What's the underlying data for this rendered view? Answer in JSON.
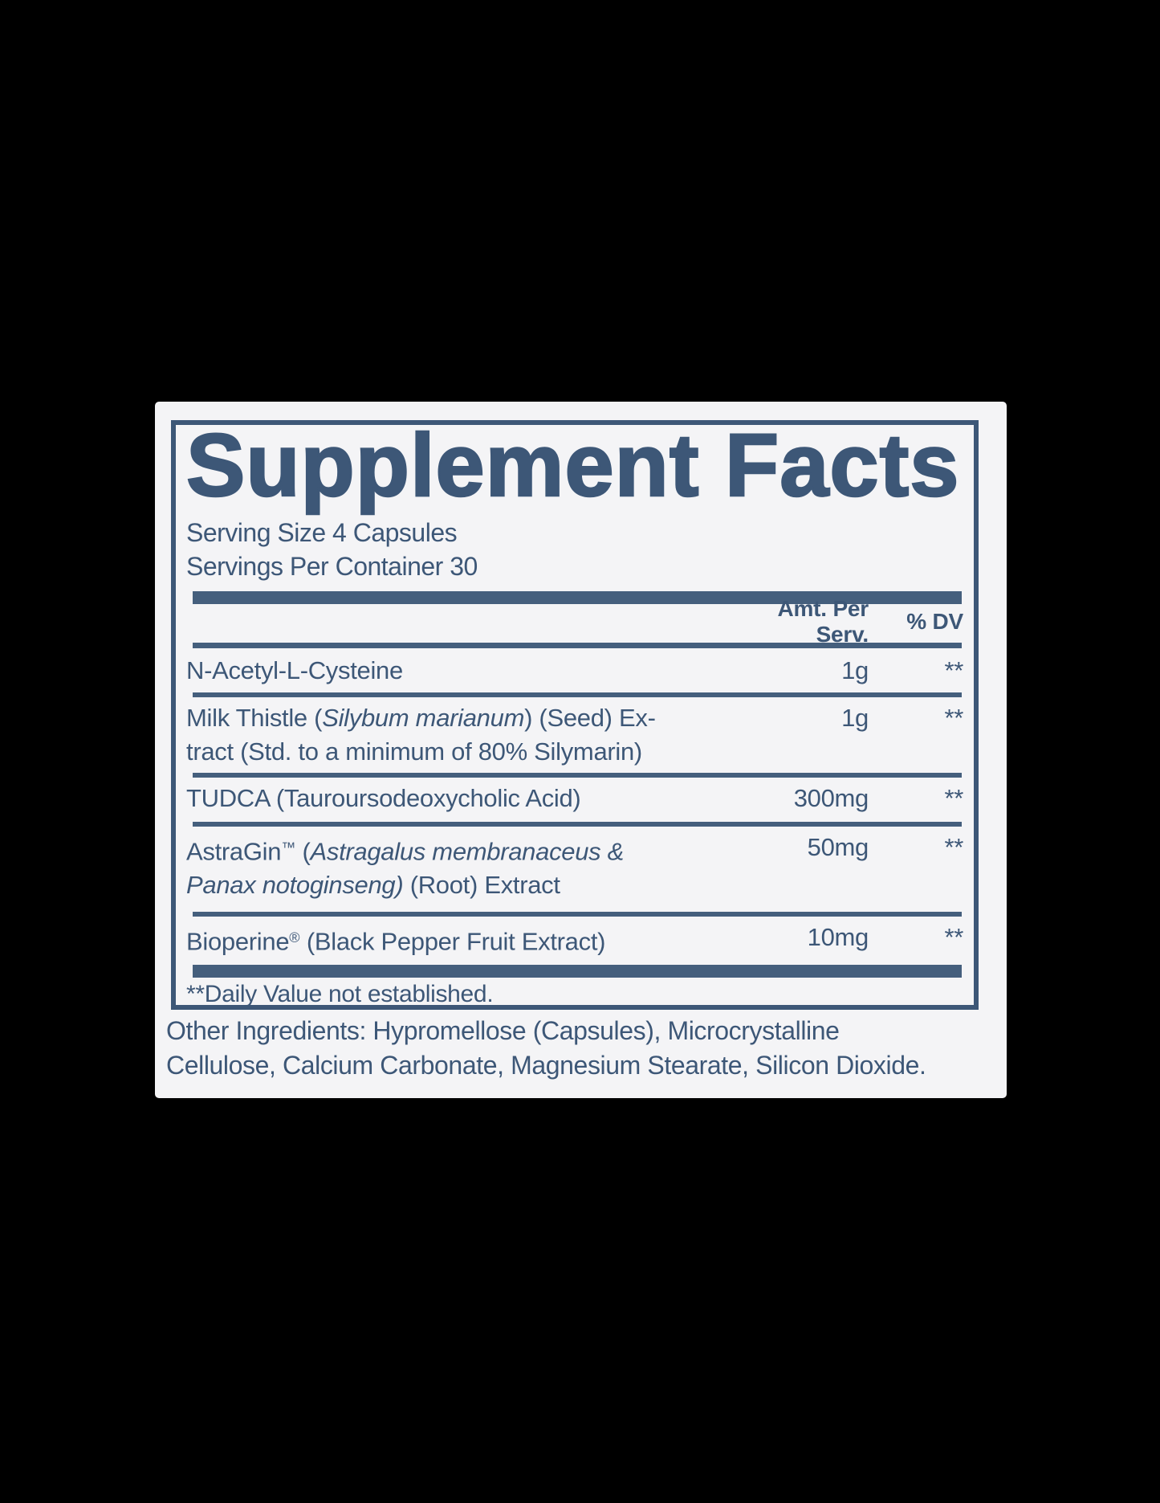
{
  "colors": {
    "ink": "#3d5777",
    "bar": "#455f7d",
    "panel_bg": "#f4f4f6",
    "page_bg": "#000000"
  },
  "panel": {
    "title": "Supplement Facts",
    "serving_size": "Serving Size 4 Capsules",
    "servings_per_container": "Servings Per Container 30",
    "columns": {
      "amount": "Amt. Per Serv.",
      "dv": "% DV"
    },
    "rows": [
      {
        "name": "N-Acetyl-L-Cysteine",
        "amount": "1g",
        "dv": "**"
      },
      {
        "pre": "Milk Thistle (",
        "italic": "Silybum marianum",
        "post": ") (Seed) Ex-",
        "line2": "tract (Std. to a minimum of 80% Silymarin)",
        "amount": "1g",
        "dv": "**"
      },
      {
        "name": "TUDCA (Tauroursodeoxycholic Acid)",
        "amount": "300mg",
        "dv": "**"
      },
      {
        "pre": "AstraGin",
        "sup": "™",
        "mid": " (",
        "italic": "Astragalus membranaceus &",
        "italic2": "Panax notoginseng)",
        "post": " (Root) Extract",
        "amount": "50mg",
        "dv": "**"
      },
      {
        "pre": "Bioperine",
        "sup": "®",
        "post": " (Black Pepper Fruit Extract)",
        "amount": "10mg",
        "dv": "**"
      }
    ],
    "footnote": "**Daily Value not established.",
    "other_ingredients_line1": "Other Ingredients: Hypromellose (Capsules), Microcrystalline",
    "other_ingredients_line2": "Cellulose, Calcium Carbonate, Magnesium Stearate, Silicon Dioxide."
  }
}
